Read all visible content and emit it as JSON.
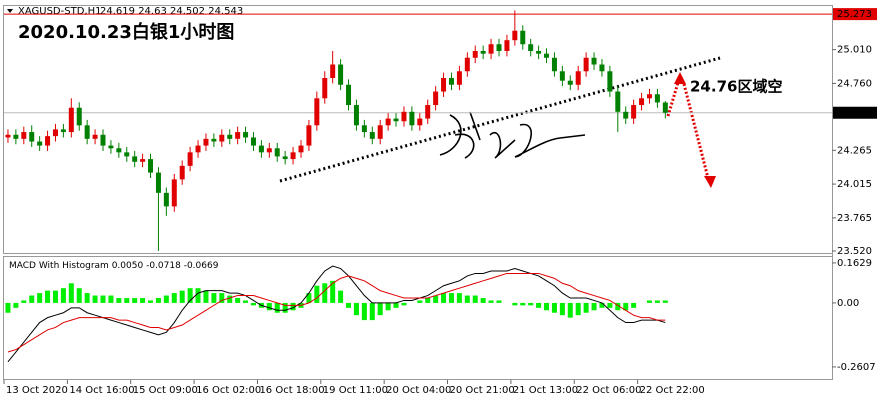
{
  "chart_data": {
    "type": "candlestick",
    "symbol": "XAGUSD-STD,H1",
    "title": "2020.10.23白银1小时图",
    "annotation": "24.76区域空",
    "up_color": "#e00000",
    "down_color": "#008000",
    "ylim": [
      23.505,
      25.333
    ],
    "yticks": [
      {
        "value": 25.01,
        "label": "25.010"
      },
      {
        "value": 24.76,
        "label": "24.760"
      },
      24.265,
      24.015,
      23.765,
      {
        "value": 23.52,
        "label": "23.520"
      }
    ],
    "high_line": 25.273,
    "price_line": 24.543,
    "xlim": [
      0,
      84
    ],
    "xticks": [
      {
        "value": 0,
        "label": "13 Oct 2020"
      },
      {
        "value": 8,
        "label": "14 Oct 16:00"
      },
      {
        "value": 16,
        "label": "15 Oct 09:00"
      },
      {
        "value": 24,
        "label": "16 Oct 02:00"
      },
      {
        "value": 32,
        "label": "16 Oct 18:00"
      },
      {
        "value": 40,
        "label": "19 Oct 11:00"
      },
      {
        "value": 48,
        "label": "20 Oct 04:00"
      },
      {
        "value": 56,
        "label": "20 Oct 21:00"
      },
      {
        "value": 64,
        "label": "21 Oct 13:00"
      },
      {
        "value": 72,
        "label": "22 Oct 06:00"
      },
      {
        "value": 80,
        "label": "22 Oct 22:00"
      }
    ],
    "open": [
      24.36,
      24.38,
      24.35,
      24.4,
      24.33,
      24.3,
      24.37,
      24.42,
      24.4,
      24.58,
      24.45,
      24.35,
      24.38,
      24.3,
      24.28,
      24.25,
      24.22,
      24.18,
      24.2,
      24.1,
      23.95,
      23.85,
      24.05,
      24.15,
      24.25,
      24.3,
      24.35,
      24.33,
      24.38,
      24.35,
      24.4,
      24.36,
      24.3,
      24.25,
      24.28,
      24.22,
      24.2,
      24.25,
      24.3,
      24.45,
      24.65,
      24.8,
      24.9,
      24.75,
      24.6,
      24.45,
      24.4,
      24.35,
      24.45,
      24.5,
      24.48,
      24.55,
      24.45,
      24.5,
      24.6,
      24.7,
      24.8,
      24.75,
      24.85,
      24.95,
      25.0,
      24.98,
      25.05,
      25.0,
      25.08,
      25.15,
      25.05,
      25.0,
      24.98,
      24.95,
      24.85,
      24.78,
      24.75,
      24.85,
      24.95,
      24.9,
      24.85,
      24.7,
      24.55,
      24.5,
      24.6,
      24.65,
      24.68,
      24.619
    ],
    "high": [
      24.42,
      24.42,
      24.44,
      24.45,
      24.37,
      24.41,
      24.46,
      24.46,
      24.65,
      24.62,
      24.49,
      24.42,
      24.42,
      24.34,
      24.32,
      24.29,
      24.26,
      24.24,
      24.24,
      24.14,
      23.99,
      24.09,
      24.19,
      24.29,
      24.34,
      24.39,
      24.39,
      24.42,
      24.42,
      24.44,
      24.44,
      24.4,
      24.34,
      24.32,
      24.32,
      24.26,
      24.29,
      24.34,
      24.49,
      24.7,
      24.85,
      25.0,
      24.94,
      24.79,
      24.64,
      24.49,
      24.44,
      24.49,
      24.54,
      24.54,
      24.59,
      24.59,
      24.54,
      24.64,
      24.74,
      24.84,
      24.84,
      24.89,
      24.99,
      25.04,
      25.04,
      25.09,
      25.09,
      25.12,
      25.3,
      25.19,
      25.09,
      25.04,
      25.02,
      24.99,
      24.89,
      24.82,
      24.89,
      24.99,
      24.99,
      24.94,
      24.89,
      24.74,
      24.59,
      24.64,
      24.69,
      24.72,
      24.72,
      24.63
    ],
    "low": [
      24.32,
      24.31,
      24.31,
      24.29,
      24.26,
      24.26,
      24.33,
      24.36,
      24.36,
      24.41,
      24.31,
      24.31,
      24.26,
      24.24,
      24.21,
      24.18,
      24.14,
      24.14,
      24.06,
      23.52,
      23.78,
      23.81,
      24.01,
      24.11,
      24.21,
      24.26,
      24.29,
      24.29,
      24.31,
      24.31,
      24.32,
      24.26,
      24.21,
      24.21,
      24.18,
      24.16,
      24.16,
      24.21,
      24.26,
      24.41,
      24.61,
      24.76,
      24.71,
      24.56,
      24.41,
      24.36,
      24.31,
      24.31,
      24.41,
      24.44,
      24.44,
      24.41,
      24.41,
      24.46,
      24.56,
      24.66,
      24.71,
      24.71,
      24.81,
      24.91,
      24.94,
      24.94,
      24.96,
      24.96,
      25.04,
      25.01,
      24.96,
      24.94,
      24.91,
      24.81,
      24.74,
      24.71,
      24.71,
      24.81,
      24.86,
      24.81,
      24.66,
      24.4,
      24.46,
      24.46,
      24.56,
      24.61,
      24.58,
      24.502
    ],
    "close": [
      24.38,
      24.35,
      24.4,
      24.33,
      24.3,
      24.37,
      24.42,
      24.4,
      24.58,
      24.45,
      24.35,
      24.38,
      24.3,
      24.28,
      24.25,
      24.22,
      24.18,
      24.2,
      24.1,
      23.95,
      23.85,
      24.05,
      24.15,
      24.25,
      24.3,
      24.35,
      24.33,
      24.38,
      24.35,
      24.4,
      24.36,
      24.3,
      24.25,
      24.28,
      24.22,
      24.2,
      24.25,
      24.3,
      24.45,
      24.65,
      24.8,
      24.9,
      24.75,
      24.6,
      24.45,
      24.4,
      24.35,
      24.45,
      24.5,
      24.48,
      24.55,
      24.45,
      24.5,
      24.6,
      24.7,
      24.8,
      24.75,
      24.85,
      24.95,
      25.0,
      24.98,
      25.05,
      25.0,
      25.08,
      25.15,
      25.05,
      25.0,
      24.98,
      24.95,
      24.85,
      24.78,
      24.75,
      24.85,
      24.95,
      24.9,
      24.85,
      24.7,
      24.55,
      24.5,
      24.6,
      24.65,
      24.68,
      24.619,
      24.543
    ],
    "macd": {
      "label": "MACD With Histogram",
      "readout": [
        {
          "value": 0.005,
          "label": "0.0050"
        },
        {
          "value": -0.0718,
          "label": "-0.0718"
        },
        {
          "value": -0.0669,
          "label": "-0.0669"
        }
      ],
      "ylim": [
        -0.314,
        0.187
      ],
      "yticks": [
        0.1629,
        {
          "value": 0,
          "label": "0.00"
        },
        -0.2607
      ],
      "series": [
        {
          "kind": "histogram",
          "color": "#00ee00",
          "values": [
            -0.04,
            -0.02,
            0.01,
            0.03,
            0.04,
            0.05,
            0.05,
            0.06,
            0.08,
            0.06,
            0.04,
            0.03,
            0.03,
            0.03,
            0.02,
            0.02,
            0.02,
            0.02,
            0.01,
            0.02,
            0.03,
            0.04,
            0.05,
            0.06,
            0.06,
            0.05,
            0.04,
            0.04,
            0.03,
            0.02,
            0.01,
            -0.01,
            -0.02,
            -0.03,
            -0.04,
            -0.04,
            -0.03,
            -0.02,
            0.04,
            0.07,
            0.08,
            0.09,
            0.05,
            -0.02,
            -0.05,
            -0.07,
            -0.07,
            -0.05,
            -0.03,
            -0.02,
            -0.01,
            0.0,
            0.01,
            0.02,
            0.03,
            0.04,
            0.04,
            0.04,
            0.03,
            0.03,
            0.02,
            0.01,
            0.01,
            0.0,
            -0.01,
            -0.01,
            -0.01,
            -0.02,
            -0.03,
            -0.04,
            -0.05,
            -0.06,
            -0.05,
            -0.04,
            -0.03,
            -0.02,
            -0.02,
            -0.03,
            -0.03,
            -0.02,
            0.0,
            0.01,
            0.01,
            0.01
          ]
        },
        {
          "kind": "line",
          "color": "#000000",
          "values": [
            -0.24,
            -0.2,
            -0.16,
            -0.12,
            -0.08,
            -0.06,
            -0.05,
            -0.04,
            -0.02,
            -0.02,
            -0.04,
            -0.05,
            -0.06,
            -0.07,
            -0.08,
            -0.09,
            -0.1,
            -0.11,
            -0.12,
            -0.13,
            -0.12,
            -0.08,
            -0.03,
            0.01,
            0.04,
            0.05,
            0.05,
            0.05,
            0.04,
            0.04,
            0.03,
            0.01,
            -0.01,
            -0.02,
            -0.03,
            -0.03,
            -0.02,
            0.0,
            0.04,
            0.09,
            0.13,
            0.15,
            0.14,
            0.11,
            0.07,
            0.03,
            0.0,
            0.0,
            0.0,
            0.0,
            0.01,
            0.01,
            0.02,
            0.03,
            0.05,
            0.07,
            0.08,
            0.09,
            0.11,
            0.12,
            0.12,
            0.13,
            0.13,
            0.13,
            0.14,
            0.13,
            0.12,
            0.11,
            0.09,
            0.07,
            0.04,
            0.02,
            0.02,
            0.02,
            0.01,
            0.0,
            -0.03,
            -0.06,
            -0.08,
            -0.08,
            -0.07,
            -0.07,
            -0.07,
            -0.08
          ]
        },
        {
          "kind": "line",
          "color": "#e00000",
          "values": [
            -0.2,
            -0.19,
            -0.17,
            -0.15,
            -0.13,
            -0.11,
            -0.1,
            -0.08,
            -0.07,
            -0.06,
            -0.06,
            -0.06,
            -0.06,
            -0.06,
            -0.07,
            -0.07,
            -0.08,
            -0.09,
            -0.1,
            -0.1,
            -0.11,
            -0.1,
            -0.09,
            -0.07,
            -0.05,
            -0.03,
            -0.01,
            0.01,
            0.02,
            0.03,
            0.03,
            0.03,
            0.02,
            0.01,
            0.0,
            -0.01,
            -0.01,
            -0.01,
            0.0,
            0.02,
            0.05,
            0.08,
            0.1,
            0.11,
            0.1,
            0.09,
            0.07,
            0.05,
            0.04,
            0.03,
            0.02,
            0.02,
            0.02,
            0.02,
            0.03,
            0.04,
            0.05,
            0.06,
            0.07,
            0.08,
            0.09,
            0.1,
            0.11,
            0.12,
            0.12,
            0.12,
            0.12,
            0.12,
            0.11,
            0.1,
            0.08,
            0.07,
            0.05,
            0.04,
            0.03,
            0.02,
            0.01,
            -0.01,
            -0.03,
            -0.05,
            -0.06,
            -0.06,
            -0.07,
            -0.07
          ]
        }
      ]
    }
  }
}
